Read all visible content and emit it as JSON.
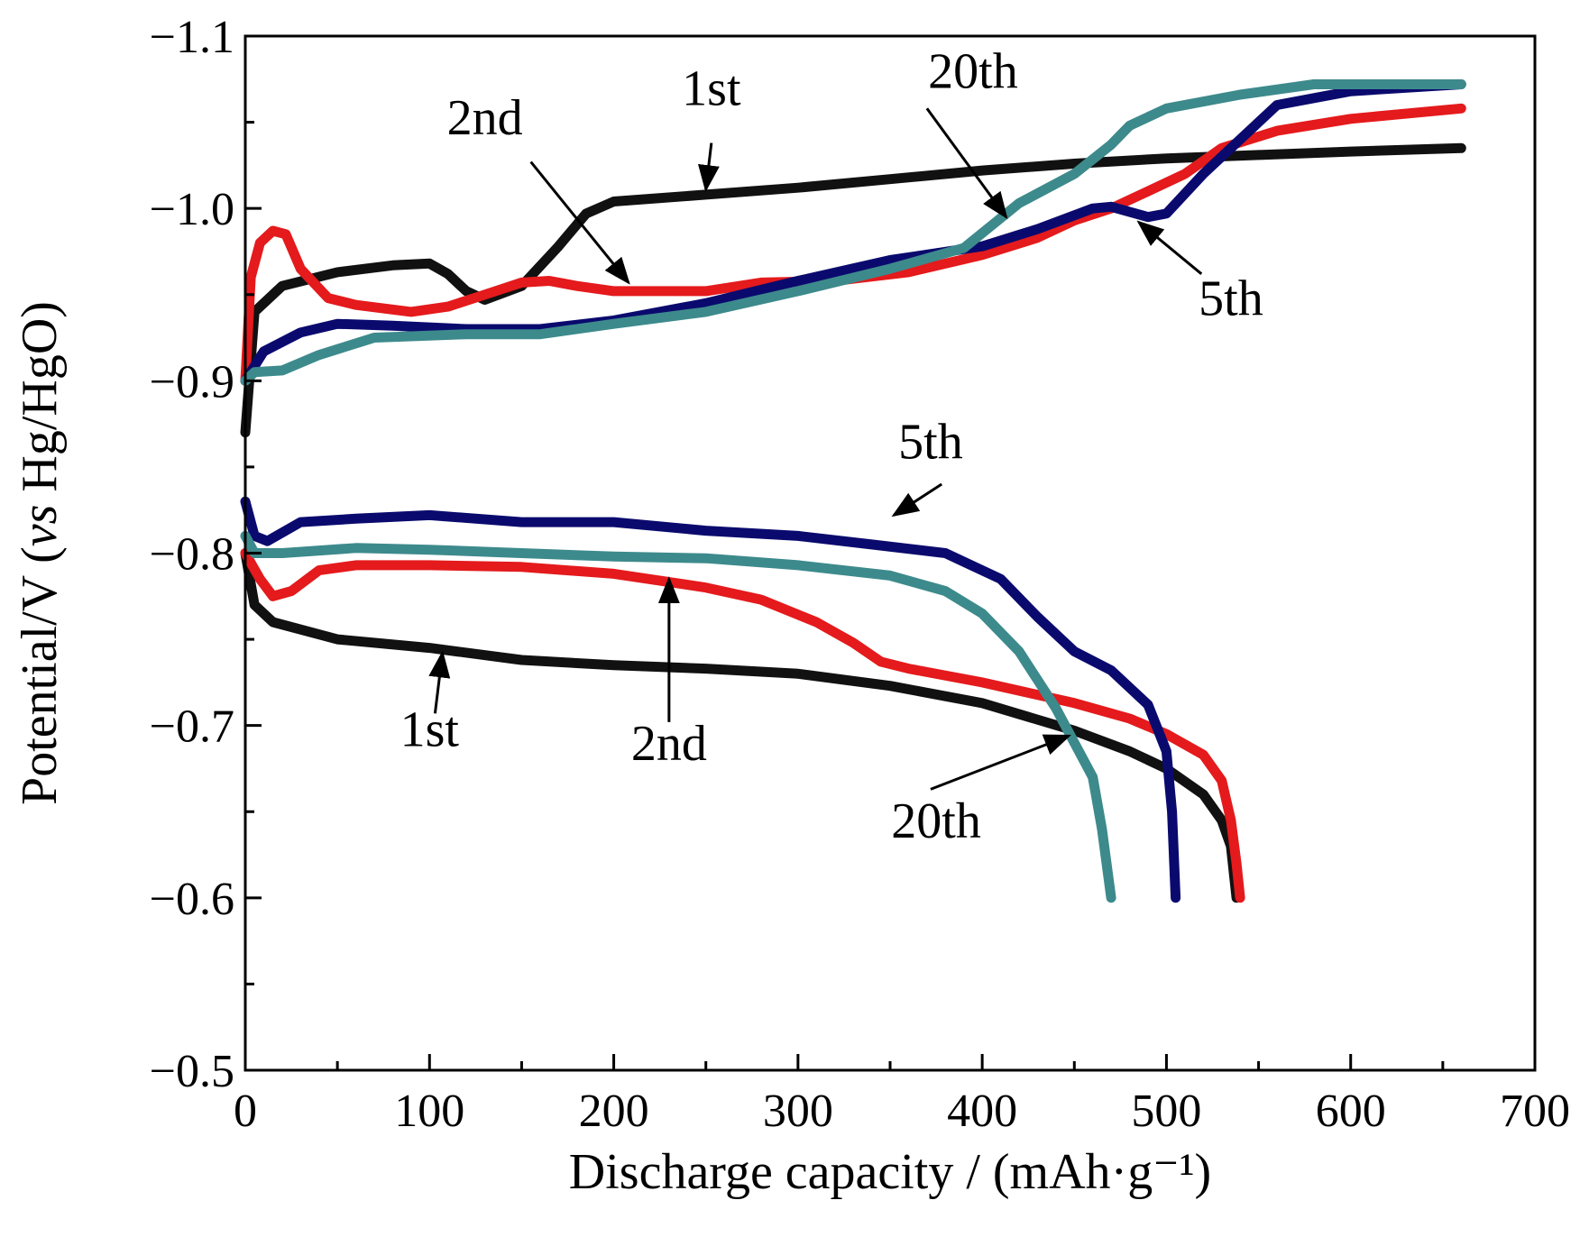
{
  "chart_data": {
    "type": "line",
    "title": "",
    "xlabel": "Discharge capacity / (mAh·g⁻¹)",
    "ylabel_main": "Potential/V (",
    "ylabel_italic": "vs",
    "ylabel_tail": " Hg/HgO)",
    "xlim": [
      0,
      700
    ],
    "ylim": [
      -0.5,
      -1.1
    ],
    "x_ticks": [
      0,
      100,
      200,
      300,
      400,
      500,
      600,
      700
    ],
    "x_tick_labels": [
      "0",
      "100",
      "200",
      "300",
      "400",
      "500",
      "600",
      "700"
    ],
    "y_ticks": [
      -1.1,
      -1.0,
      -0.9,
      -0.8,
      -0.7,
      -0.6,
      -0.5
    ],
    "y_tick_labels": [
      "−1.1",
      "−1.0",
      "−0.9",
      "−0.8",
      "−0.7",
      "−0.6",
      "−0.5"
    ],
    "grid": false,
    "series": [
      {
        "name": "1st",
        "color": "#111111",
        "charge": [
          [
            0,
            -0.87
          ],
          [
            5,
            -0.94
          ],
          [
            20,
            -0.955
          ],
          [
            50,
            -0.963
          ],
          [
            80,
            -0.967
          ],
          [
            100,
            -0.968
          ],
          [
            110,
            -0.962
          ],
          [
            120,
            -0.952
          ],
          [
            130,
            -0.947
          ],
          [
            150,
            -0.955
          ],
          [
            170,
            -0.978
          ],
          [
            185,
            -0.997
          ],
          [
            200,
            -1.004
          ],
          [
            250,
            -1.008
          ],
          [
            300,
            -1.012
          ],
          [
            350,
            -1.017
          ],
          [
            400,
            -1.022
          ],
          [
            450,
            -1.026
          ],
          [
            500,
            -1.029
          ],
          [
            550,
            -1.031
          ],
          [
            600,
            -1.033
          ],
          [
            660,
            -1.035
          ]
        ],
        "discharge": [
          [
            0,
            -0.8
          ],
          [
            5,
            -0.77
          ],
          [
            15,
            -0.76
          ],
          [
            50,
            -0.75
          ],
          [
            100,
            -0.745
          ],
          [
            150,
            -0.738
          ],
          [
            200,
            -0.735
          ],
          [
            250,
            -0.733
          ],
          [
            300,
            -0.73
          ],
          [
            350,
            -0.723
          ],
          [
            400,
            -0.713
          ],
          [
            450,
            -0.697
          ],
          [
            480,
            -0.685
          ],
          [
            500,
            -0.675
          ],
          [
            520,
            -0.66
          ],
          [
            530,
            -0.645
          ],
          [
            535,
            -0.63
          ],
          [
            538,
            -0.6
          ]
        ]
      },
      {
        "name": "2nd",
        "color": "#e41a1c",
        "charge": [
          [
            0,
            -0.9
          ],
          [
            3,
            -0.96
          ],
          [
            8,
            -0.98
          ],
          [
            15,
            -0.987
          ],
          [
            22,
            -0.985
          ],
          [
            30,
            -0.965
          ],
          [
            45,
            -0.948
          ],
          [
            60,
            -0.944
          ],
          [
            90,
            -0.94
          ],
          [
            110,
            -0.943
          ],
          [
            130,
            -0.95
          ],
          [
            150,
            -0.957
          ],
          [
            165,
            -0.958
          ],
          [
            180,
            -0.955
          ],
          [
            200,
            -0.952
          ],
          [
            250,
            -0.952
          ],
          [
            280,
            -0.957
          ],
          [
            320,
            -0.958
          ],
          [
            360,
            -0.963
          ],
          [
            400,
            -0.973
          ],
          [
            430,
            -0.983
          ],
          [
            450,
            -0.993
          ],
          [
            470,
            -1.0
          ],
          [
            490,
            -1.01
          ],
          [
            510,
            -1.02
          ],
          [
            530,
            -1.035
          ],
          [
            560,
            -1.045
          ],
          [
            600,
            -1.052
          ],
          [
            660,
            -1.058
          ]
        ],
        "discharge": [
          [
            0,
            -0.8
          ],
          [
            8,
            -0.785
          ],
          [
            15,
            -0.775
          ],
          [
            25,
            -0.778
          ],
          [
            40,
            -0.79
          ],
          [
            60,
            -0.793
          ],
          [
            100,
            -0.793
          ],
          [
            150,
            -0.792
          ],
          [
            200,
            -0.788
          ],
          [
            250,
            -0.78
          ],
          [
            280,
            -0.773
          ],
          [
            310,
            -0.76
          ],
          [
            330,
            -0.748
          ],
          [
            345,
            -0.737
          ],
          [
            360,
            -0.733
          ],
          [
            400,
            -0.725
          ],
          [
            450,
            -0.713
          ],
          [
            480,
            -0.704
          ],
          [
            500,
            -0.695
          ],
          [
            520,
            -0.683
          ],
          [
            530,
            -0.668
          ],
          [
            535,
            -0.645
          ],
          [
            538,
            -0.62
          ],
          [
            540,
            -0.6
          ]
        ]
      },
      {
        "name": "5th",
        "color": "#0a0a6e",
        "charge": [
          [
            0,
            -0.9
          ],
          [
            10,
            -0.917
          ],
          [
            30,
            -0.928
          ],
          [
            50,
            -0.933
          ],
          [
            80,
            -0.932
          ],
          [
            120,
            -0.93
          ],
          [
            160,
            -0.93
          ],
          [
            200,
            -0.935
          ],
          [
            250,
            -0.945
          ],
          [
            300,
            -0.958
          ],
          [
            350,
            -0.97
          ],
          [
            400,
            -0.978
          ],
          [
            430,
            -0.988
          ],
          [
            460,
            -1.0
          ],
          [
            470,
            -1.001
          ],
          [
            490,
            -0.995
          ],
          [
            500,
            -0.997
          ],
          [
            520,
            -1.02
          ],
          [
            540,
            -1.04
          ],
          [
            560,
            -1.06
          ],
          [
            600,
            -1.068
          ],
          [
            660,
            -1.072
          ]
        ],
        "discharge": [
          [
            0,
            -0.83
          ],
          [
            5,
            -0.81
          ],
          [
            12,
            -0.807
          ],
          [
            30,
            -0.818
          ],
          [
            60,
            -0.82
          ],
          [
            100,
            -0.822
          ],
          [
            150,
            -0.818
          ],
          [
            200,
            -0.818
          ],
          [
            250,
            -0.813
          ],
          [
            300,
            -0.81
          ],
          [
            340,
            -0.805
          ],
          [
            380,
            -0.8
          ],
          [
            410,
            -0.785
          ],
          [
            430,
            -0.763
          ],
          [
            450,
            -0.743
          ],
          [
            470,
            -0.732
          ],
          [
            490,
            -0.712
          ],
          [
            500,
            -0.685
          ],
          [
            503,
            -0.65
          ],
          [
            505,
            -0.6
          ]
        ]
      },
      {
        "name": "20th",
        "color": "#3d8a8c",
        "charge": [
          [
            0,
            -0.9
          ],
          [
            5,
            -0.905
          ],
          [
            20,
            -0.906
          ],
          [
            40,
            -0.915
          ],
          [
            70,
            -0.925
          ],
          [
            120,
            -0.927
          ],
          [
            160,
            -0.927
          ],
          [
            200,
            -0.933
          ],
          [
            250,
            -0.94
          ],
          [
            300,
            -0.952
          ],
          [
            350,
            -0.965
          ],
          [
            390,
            -0.977
          ],
          [
            420,
            -1.003
          ],
          [
            450,
            -1.02
          ],
          [
            470,
            -1.037
          ],
          [
            480,
            -1.048
          ],
          [
            500,
            -1.058
          ],
          [
            540,
            -1.066
          ],
          [
            580,
            -1.072
          ],
          [
            620,
            -1.072
          ],
          [
            660,
            -1.072
          ]
        ],
        "discharge": [
          [
            0,
            -0.81
          ],
          [
            5,
            -0.8
          ],
          [
            20,
            -0.8
          ],
          [
            60,
            -0.803
          ],
          [
            100,
            -0.802
          ],
          [
            150,
            -0.8
          ],
          [
            200,
            -0.798
          ],
          [
            250,
            -0.797
          ],
          [
            300,
            -0.793
          ],
          [
            350,
            -0.787
          ],
          [
            380,
            -0.778
          ],
          [
            400,
            -0.765
          ],
          [
            420,
            -0.743
          ],
          [
            440,
            -0.71
          ],
          [
            450,
            -0.69
          ],
          [
            460,
            -0.67
          ],
          [
            465,
            -0.64
          ],
          [
            470,
            -0.6
          ]
        ]
      }
    ],
    "annotations": [
      {
        "text": "1st",
        "x": 253,
        "y": -1.06,
        "arrow_from": [
          253,
          -1.038
        ],
        "arrow_to": [
          250,
          -1.011
        ]
      },
      {
        "text": "2nd",
        "x": 130,
        "y": -1.043,
        "arrow_from": [
          155,
          -1.027
        ],
        "arrow_to": [
          208,
          -0.957
        ]
      },
      {
        "text": "20th",
        "x": 395,
        "y": -1.07,
        "arrow_from": [
          370,
          -1.058
        ],
        "arrow_to": [
          413,
          -0.995
        ]
      },
      {
        "text": "5th",
        "x": 535,
        "y": -0.938,
        "arrow_from": [
          519,
          -0.962
        ],
        "arrow_to": [
          485,
          -0.992
        ]
      },
      {
        "text": "5th",
        "x": 372,
        "y": -0.855,
        "arrow_from": [
          378,
          -0.84
        ],
        "arrow_to": [
          352,
          -0.822
        ]
      },
      {
        "text": "2nd",
        "x": 230,
        "y": -0.68,
        "arrow_from": [
          230,
          -0.702
        ],
        "arrow_to": [
          230,
          -0.785
        ]
      },
      {
        "text": "1st",
        "x": 100,
        "y": -0.688,
        "arrow_from": [
          103,
          -0.707
        ],
        "arrow_to": [
          107,
          -0.742
        ]
      },
      {
        "text": "20th",
        "x": 375,
        "y": -0.635,
        "arrow_from": [
          372,
          -0.663
        ],
        "arrow_to": [
          447,
          -0.694
        ]
      }
    ]
  }
}
